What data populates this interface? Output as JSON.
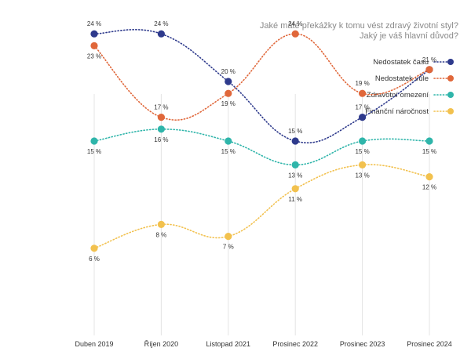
{
  "chart_data": {
    "type": "line",
    "title": [
      "Jaké máte překážky k tomu vést zdravý životní styl?",
      "Jaký je váš hlavní důvod?"
    ],
    "xlabel": "",
    "ylabel": "",
    "ylim": [
      0,
      30
    ],
    "grid": "vertical",
    "legend_position": "top-right",
    "categories": [
      "Duben 2019",
      "Říjen 2020",
      "Listopad 2021",
      "Prosinec 2022",
      "Prosinec 2023",
      "Prosinec 2024"
    ],
    "series": [
      {
        "name": "Nedostatek času",
        "color": "#2e3a8c",
        "values": [
          24,
          24,
          20,
          15,
          17,
          21
        ],
        "labels": [
          "24 %",
          "24 %",
          "20 %",
          "15 %",
          "17 %",
          "21 %"
        ],
        "label_pos": [
          "above",
          "above",
          "above",
          "above",
          "above",
          "above"
        ]
      },
      {
        "name": "Nedostatek vůle",
        "color": "#e0673a",
        "values": [
          23,
          17,
          19,
          24,
          19,
          21
        ],
        "labels": [
          "23 %",
          "17 %",
          "19 %",
          "24 %",
          "19 %",
          "21 %"
        ],
        "label_pos": [
          "below",
          "above",
          "below",
          "above",
          "above",
          "none"
        ]
      },
      {
        "name": "Zdravotní omezení",
        "color": "#2fb5aa",
        "values": [
          15,
          16,
          15,
          13,
          15,
          15
        ],
        "labels": [
          "15 %",
          "16 %",
          "15 %",
          "13 %",
          "15 %",
          "15 %"
        ],
        "label_pos": [
          "below",
          "below",
          "below",
          "below",
          "below",
          "below"
        ]
      },
      {
        "name": "Finanční náročnost",
        "color": "#f2c14e",
        "values": [
          6,
          8,
          7,
          11,
          13,
          12
        ],
        "labels": [
          "6 %",
          "8 %",
          "7 %",
          "11 %",
          "13 %",
          "12 %"
        ],
        "label_pos": [
          "below",
          "below",
          "below",
          "below",
          "below",
          "below"
        ]
      }
    ]
  }
}
